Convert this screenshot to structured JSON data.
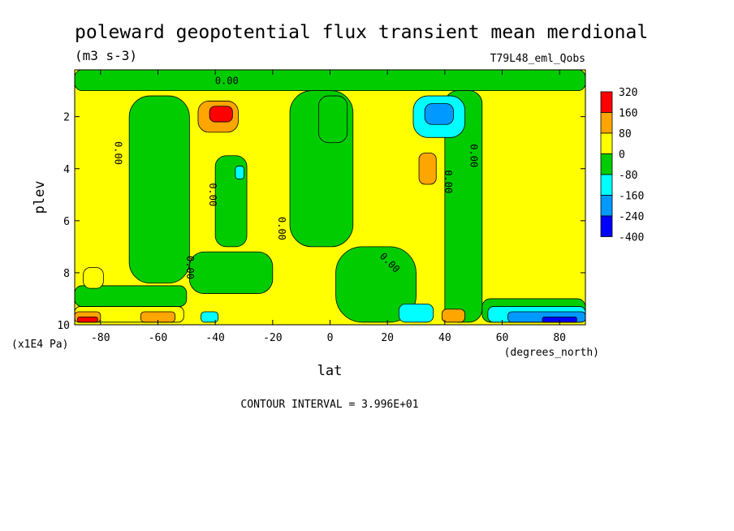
{
  "chart_data": {
    "type": "heatmap",
    "title": "poleward geopotential flux transient mean merdional",
    "units": "(m3 s-3)",
    "run_label": "T79L48_eml_Qobs",
    "xlabel": "lat",
    "x_units": "(degrees_north)",
    "ylabel": "plev",
    "y_units": "(x1E4 Pa)",
    "x_ticks": [
      "-80",
      "-60",
      "-40",
      "-20",
      "0",
      "20",
      "40",
      "60",
      "80"
    ],
    "y_ticks": [
      "2",
      "4",
      "6",
      "8",
      "10"
    ],
    "xlim": [
      -89,
      89
    ],
    "ylim": [
      10,
      0.2
    ],
    "y_inverted": true,
    "contour_interval_text": "CONTOUR INTERVAL = 3.996E+01",
    "contour_label": "0.00",
    "colorbar": {
      "labels": [
        "320",
        "160",
        "80",
        "0",
        "-80",
        "-160",
        "-240",
        "-400"
      ],
      "colors": [
        "#ff0000",
        "#ffa500",
        "#ffff00",
        "#00cc00",
        "#00ffff",
        "#0099ff",
        "#0000ff"
      ]
    },
    "background_color": "#ffff00",
    "regions": [
      {
        "level": "-80..0",
        "color": "#00cc00",
        "lat": [
          -89,
          89
        ],
        "plev": [
          0.2,
          1.0
        ]
      },
      {
        "level": "-80..0",
        "color": "#00cc00",
        "lat": [
          -89,
          -50
        ],
        "plev": [
          8.5,
          9.3
        ]
      },
      {
        "level": "-80..0",
        "color": "#00cc00",
        "lat": [
          -70,
          -49
        ],
        "plev": [
          1.2,
          8.4
        ]
      },
      {
        "level": "-80..0",
        "color": "#00cc00",
        "lat": [
          -49,
          -20
        ],
        "plev": [
          7.2,
          8.8
        ]
      },
      {
        "level": "-80..0",
        "color": "#00cc00",
        "lat": [
          -40,
          -29
        ],
        "plev": [
          3.5,
          7.0
        ]
      },
      {
        "level": "-80..0",
        "color": "#00cc00",
        "lat": [
          -14,
          8
        ],
        "plev": [
          1.0,
          7.0
        ]
      },
      {
        "level": "-80..0",
        "color": "#00cc00",
        "lat": [
          2,
          30
        ],
        "plev": [
          7.0,
          9.9
        ]
      },
      {
        "level": "-80..0",
        "color": "#00cc00",
        "lat": [
          40,
          53
        ],
        "plev": [
          1.0,
          9.9
        ]
      },
      {
        "level": "-80..0",
        "color": "#00cc00",
        "lat": [
          -4,
          6
        ],
        "plev": [
          1.2,
          3.0
        ]
      },
      {
        "level": "-80..0",
        "color": "#00cc00",
        "lat": [
          53,
          89
        ],
        "plev": [
          9.0,
          9.9
        ]
      },
      {
        "level": "0..80",
        "color": "#ffff00",
        "lat": [
          -86,
          -79
        ],
        "plev": [
          7.8,
          8.6
        ]
      },
      {
        "level": "0..80",
        "color": "#ffff00",
        "lat": [
          -89,
          -51
        ],
        "plev": [
          9.3,
          9.9
        ]
      },
      {
        "level": "80..160",
        "color": "#ffa500",
        "lat": [
          -46,
          -32
        ],
        "plev": [
          1.4,
          2.6
        ]
      },
      {
        "level": "80..160",
        "color": "#ffa500",
        "lat": [
          -89,
          -80
        ],
        "plev": [
          9.5,
          9.9
        ]
      },
      {
        "level": "80..160",
        "color": "#ffa500",
        "lat": [
          -66,
          -54
        ],
        "plev": [
          9.5,
          9.9
        ]
      },
      {
        "level": "80..160",
        "color": "#ffa500",
        "lat": [
          31,
          37
        ],
        "plev": [
          3.4,
          4.6
        ]
      },
      {
        "level": "80..160",
        "color": "#ffa500",
        "lat": [
          39,
          47
        ],
        "plev": [
          9.4,
          9.9
        ]
      },
      {
        "level": "160..320",
        "color": "#ff0000",
        "lat": [
          -42,
          -34
        ],
        "plev": [
          1.6,
          2.2
        ]
      },
      {
        "level": "160..320",
        "color": "#ff0000",
        "lat": [
          -88,
          -81
        ],
        "plev": [
          9.7,
          9.9
        ]
      },
      {
        "level": "-160..-80",
        "color": "#00ffff",
        "lat": [
          29,
          47
        ],
        "plev": [
          1.2,
          2.8
        ]
      },
      {
        "level": "-160..-80",
        "color": "#00ffff",
        "lat": [
          -45,
          -39
        ],
        "plev": [
          9.5,
          9.9
        ]
      },
      {
        "level": "-160..-80",
        "color": "#00ffff",
        "lat": [
          -33,
          -30
        ],
        "plev": [
          3.9,
          4.4
        ]
      },
      {
        "level": "-160..-80",
        "color": "#00ffff",
        "lat": [
          24,
          36
        ],
        "plev": [
          9.2,
          9.9
        ]
      },
      {
        "level": "-160..-80",
        "color": "#00ffff",
        "lat": [
          55,
          89
        ],
        "plev": [
          9.3,
          9.9
        ]
      },
      {
        "level": "-240..-160",
        "color": "#0099ff",
        "lat": [
          33,
          43
        ],
        "plev": [
          1.5,
          2.3
        ]
      },
      {
        "level": "-240..-160",
        "color": "#0099ff",
        "lat": [
          62,
          89
        ],
        "plev": [
          9.5,
          9.9
        ]
      },
      {
        "level": "-400..-240",
        "color": "#0000ff",
        "lat": [
          74,
          86
        ],
        "plev": [
          9.7,
          9.9
        ]
      }
    ]
  }
}
